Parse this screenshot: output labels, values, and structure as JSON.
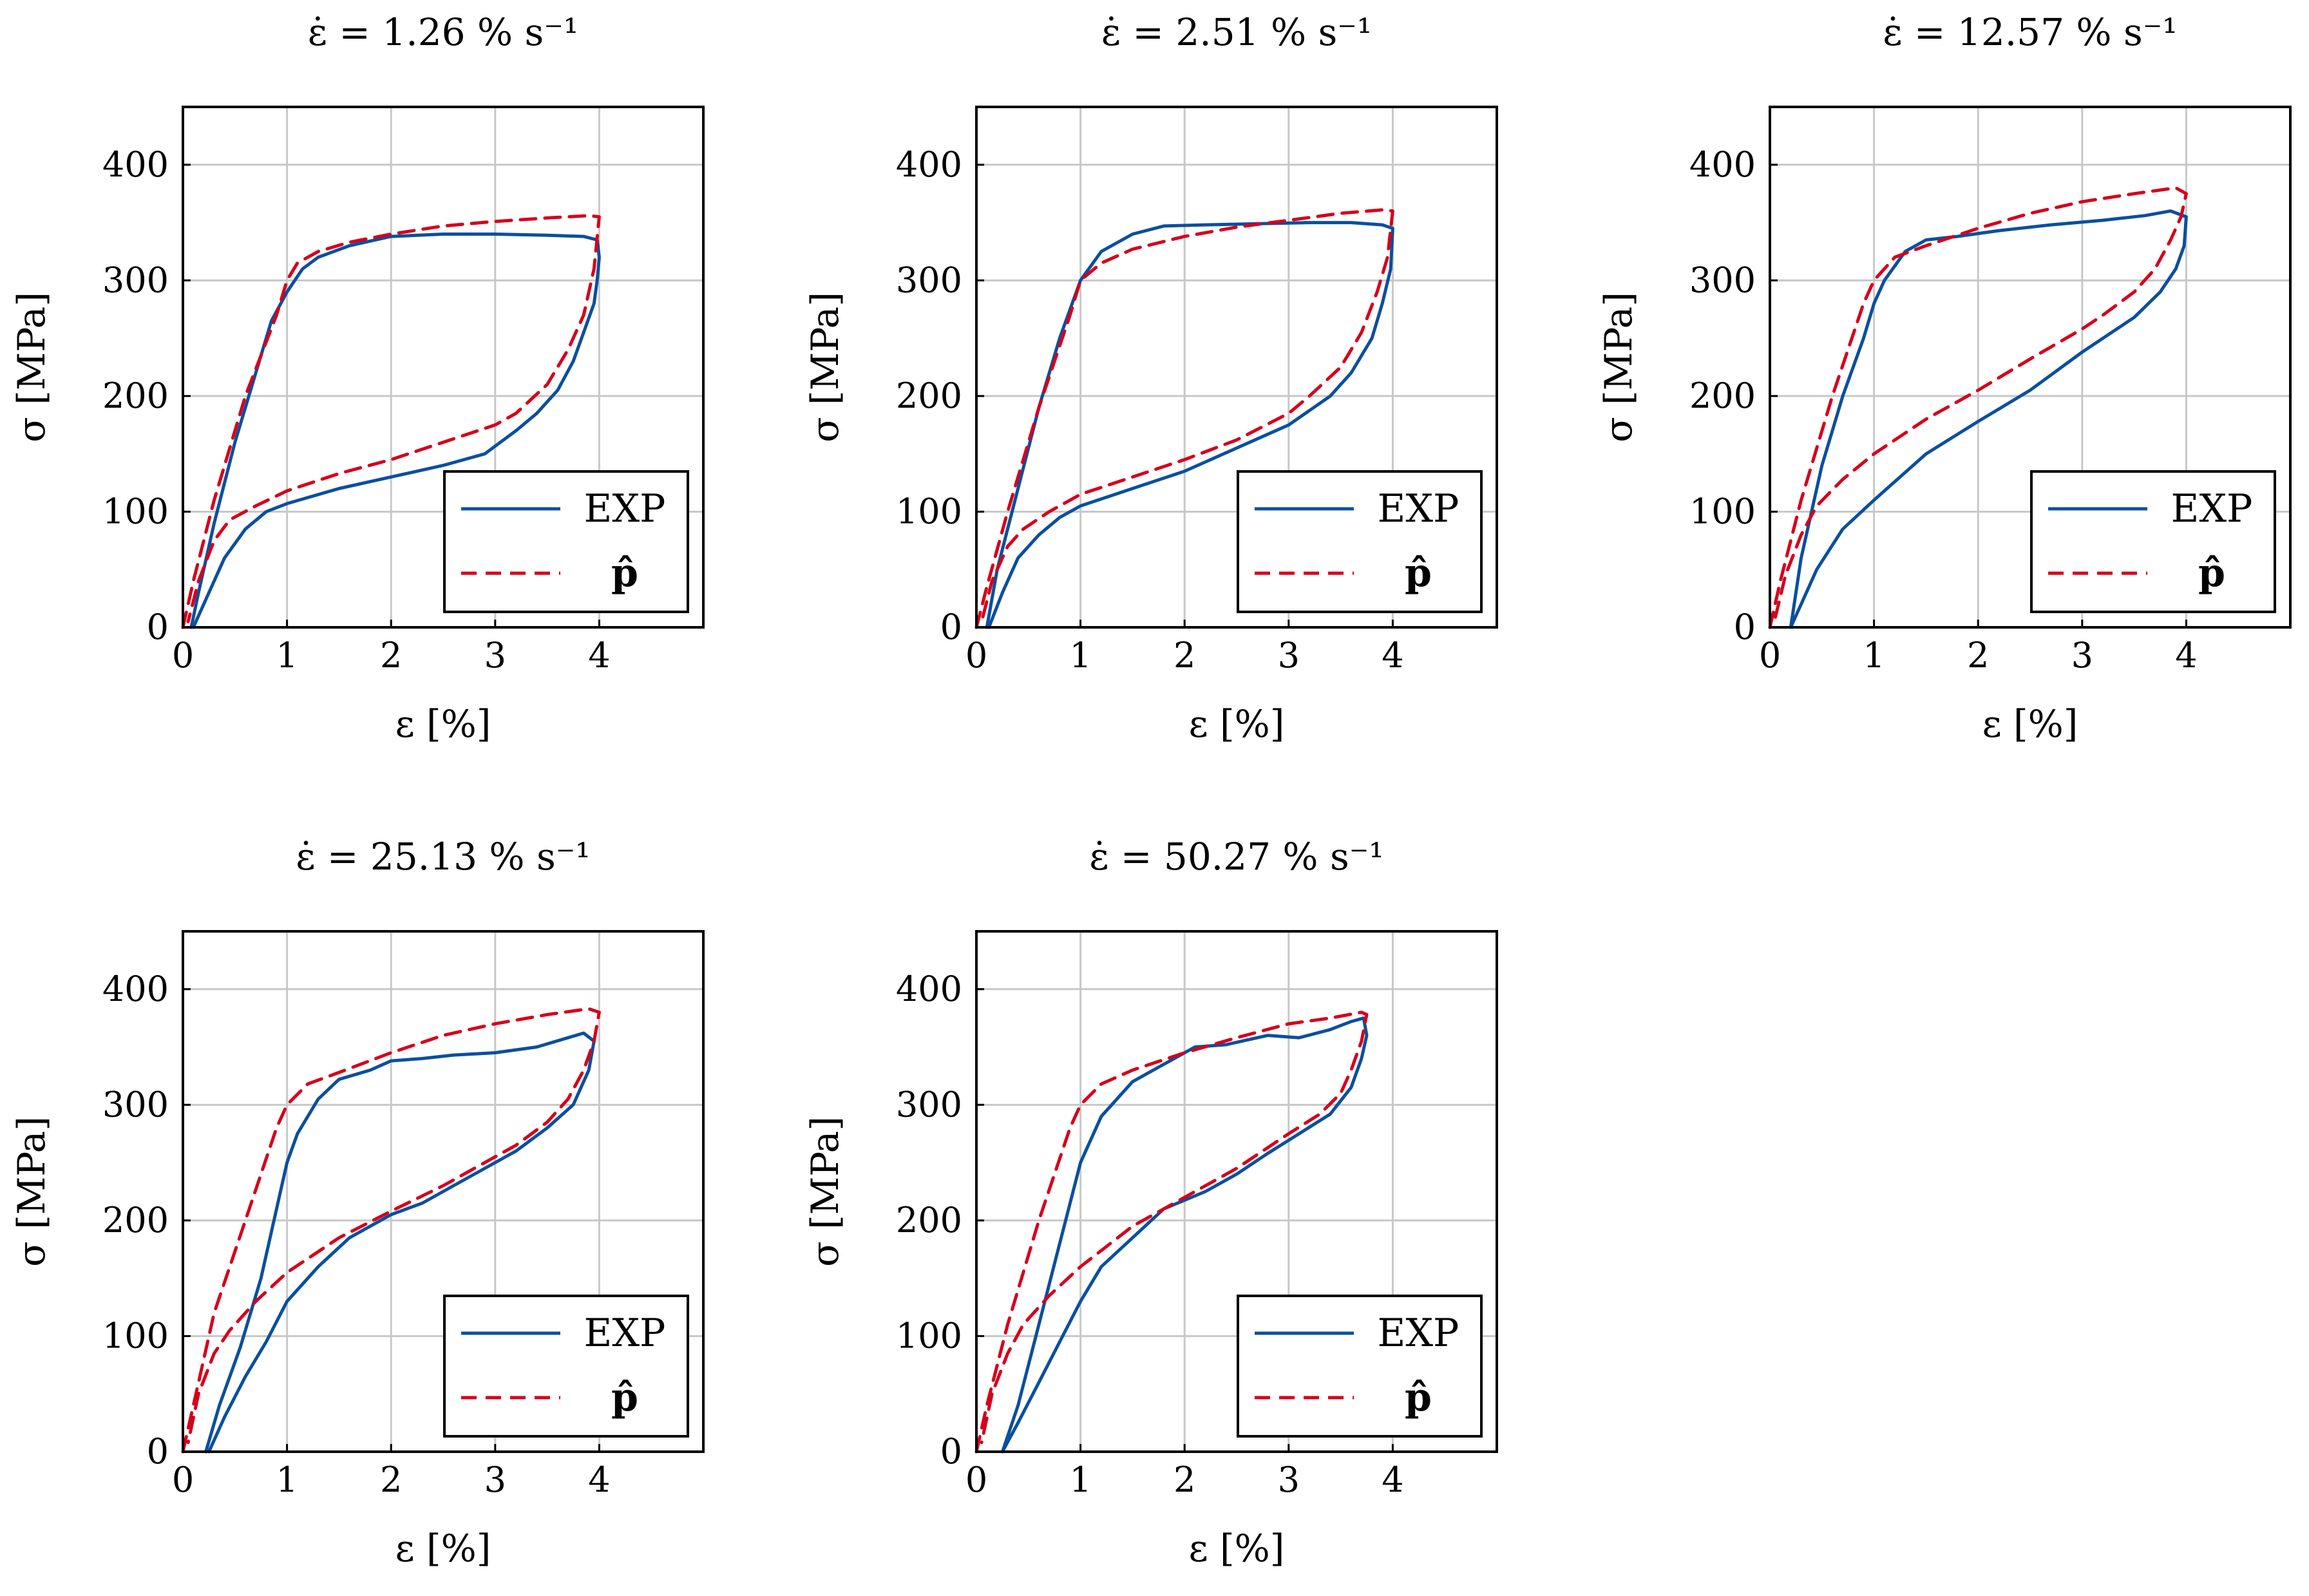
{
  "colors": {
    "exp": "#0b4f9e",
    "model": "#d6001c",
    "grid": "#c8c8c8"
  },
  "chart_data": [
    {
      "type": "line",
      "title": "ε̇ = 1.26 % s⁻¹",
      "xlabel": "ε [%]",
      "ylabel": "σ [MPa]",
      "xlim": [
        0,
        5
      ],
      "ylim": [
        0,
        450
      ],
      "xticks": [
        0,
        1,
        2,
        3,
        4
      ],
      "yticks": [
        0,
        100,
        200,
        300,
        400
      ],
      "grid": true,
      "legend_position": "bottom-right",
      "series": [
        {
          "name": "EXP",
          "style": "solid",
          "x": [
            0.08,
            0.15,
            0.3,
            0.5,
            0.7,
            0.85,
            1.0,
            1.15,
            1.3,
            1.6,
            2.0,
            2.5,
            3.0,
            3.5,
            3.85,
            3.98,
            4.0,
            3.98,
            3.95,
            3.85,
            3.75,
            3.6,
            3.4,
            3.2,
            2.9,
            2.5,
            2.0,
            1.5,
            1.0,
            0.8,
            0.6,
            0.4,
            0.25,
            0.1
          ],
          "y": [
            0,
            30,
            90,
            160,
            220,
            265,
            290,
            310,
            320,
            330,
            338,
            340,
            340,
            339,
            338,
            335,
            320,
            300,
            280,
            255,
            230,
            205,
            185,
            170,
            150,
            140,
            130,
            120,
            107,
            100,
            85,
            60,
            30,
            0
          ]
        },
        {
          "name": "p̂",
          "style": "dashed",
          "x": [
            0,
            0.1,
            0.3,
            0.6,
            0.9,
            1.0,
            1.1,
            1.3,
            1.6,
            2.0,
            2.5,
            3.0,
            3.5,
            3.9,
            4.0,
            3.95,
            3.85,
            3.7,
            3.5,
            3.2,
            3.0,
            2.5,
            2.0,
            1.5,
            1.0,
            0.7,
            0.45,
            0.3,
            0.15,
            0.05
          ],
          "y": [
            0,
            40,
            110,
            200,
            270,
            300,
            315,
            325,
            333,
            340,
            347,
            351,
            354,
            356,
            355,
            310,
            270,
            240,
            210,
            185,
            175,
            160,
            145,
            133,
            118,
            105,
            93,
            75,
            40,
            5
          ]
        }
      ]
    },
    {
      "type": "line",
      "title": "ε̇ = 2.51 % s⁻¹",
      "xlabel": "ε [%]",
      "ylabel": "σ [MPa]",
      "xlim": [
        0,
        5
      ],
      "ylim": [
        0,
        450
      ],
      "xticks": [
        0,
        1,
        2,
        3,
        4
      ],
      "yticks": [
        0,
        100,
        200,
        300,
        400
      ],
      "grid": true,
      "legend_position": "bottom-right",
      "series": [
        {
          "name": "EXP",
          "style": "solid",
          "x": [
            0.1,
            0.2,
            0.4,
            0.6,
            0.8,
            1.0,
            1.2,
            1.5,
            1.8,
            2.2,
            2.7,
            3.2,
            3.6,
            3.9,
            4.0,
            3.98,
            3.9,
            3.8,
            3.6,
            3.4,
            3.0,
            2.5,
            2.0,
            1.5,
            1.0,
            0.8,
            0.6,
            0.4,
            0.25,
            0.12
          ],
          "y": [
            0,
            50,
            120,
            190,
            250,
            300,
            325,
            340,
            347,
            348,
            349,
            350,
            350,
            348,
            345,
            310,
            280,
            250,
            220,
            200,
            175,
            155,
            135,
            120,
            105,
            95,
            80,
            60,
            30,
            0
          ]
        },
        {
          "name": "p̂",
          "style": "dashed",
          "x": [
            0,
            0.1,
            0.3,
            0.6,
            0.9,
            1.0,
            1.2,
            1.5,
            2.0,
            2.5,
            3.0,
            3.5,
            3.9,
            4.0,
            3.95,
            3.85,
            3.7,
            3.5,
            3.2,
            3.0,
            2.5,
            2.0,
            1.5,
            1.0,
            0.7,
            0.45,
            0.3,
            0.15,
            0.05
          ],
          "y": [
            0,
            35,
            100,
            190,
            270,
            300,
            315,
            327,
            338,
            346,
            352,
            358,
            361,
            360,
            320,
            290,
            255,
            225,
            200,
            185,
            162,
            145,
            130,
            115,
            100,
            85,
            70,
            40,
            5
          ]
        }
      ]
    },
    {
      "type": "line",
      "title": "ε̇ = 12.57 % s⁻¹",
      "xlabel": "ε [%]",
      "ylabel": "σ [MPa]",
      "xlim": [
        0,
        5
      ],
      "ylim": [
        0,
        450
      ],
      "xticks": [
        0,
        1,
        2,
        3,
        4
      ],
      "yticks": [
        0,
        100,
        200,
        300,
        400
      ],
      "grid": true,
      "legend_position": "bottom-right",
      "series": [
        {
          "name": "EXP",
          "style": "solid",
          "x": [
            0.2,
            0.3,
            0.5,
            0.7,
            0.9,
            1.0,
            1.1,
            1.3,
            1.5,
            1.8,
            2.2,
            2.7,
            3.2,
            3.6,
            3.85,
            4.0,
            3.98,
            3.9,
            3.75,
            3.5,
            3.0,
            2.5,
            2.0,
            1.5,
            1.0,
            0.7,
            0.45,
            0.3,
            0.2
          ],
          "y": [
            0,
            60,
            140,
            200,
            250,
            280,
            300,
            325,
            335,
            338,
            343,
            348,
            352,
            356,
            360,
            355,
            330,
            310,
            290,
            268,
            238,
            205,
            178,
            150,
            110,
            85,
            50,
            20,
            0
          ]
        },
        {
          "name": "p̂",
          "style": "dashed",
          "x": [
            0,
            0.1,
            0.3,
            0.6,
            0.9,
            1.0,
            1.2,
            1.5,
            2.0,
            2.5,
            3.0,
            3.5,
            3.9,
            4.0,
            3.95,
            3.85,
            3.7,
            3.5,
            3.2,
            3.0,
            2.5,
            2.0,
            1.5,
            1.0,
            0.7,
            0.45,
            0.3,
            0.15,
            0.05
          ],
          "y": [
            0,
            40,
            110,
            200,
            280,
            300,
            320,
            330,
            345,
            358,
            368,
            375,
            380,
            375,
            355,
            335,
            310,
            290,
            270,
            258,
            232,
            205,
            180,
            150,
            128,
            105,
            80,
            45,
            8
          ]
        }
      ]
    },
    {
      "type": "line",
      "title": "ε̇ = 25.13 % s⁻¹",
      "xlabel": "ε [%]",
      "ylabel": "σ [MPa]",
      "xlim": [
        0,
        5
      ],
      "ylim": [
        0,
        450
      ],
      "xticks": [
        0,
        1,
        2,
        3,
        4
      ],
      "yticks": [
        0,
        100,
        200,
        300,
        400
      ],
      "grid": true,
      "legend_position": "bottom-right",
      "series": [
        {
          "name": "EXP",
          "style": "solid",
          "x": [
            0.22,
            0.35,
            0.55,
            0.75,
            0.9,
            1.0,
            1.1,
            1.3,
            1.5,
            1.8,
            2.0,
            2.3,
            2.6,
            3.0,
            3.4,
            3.7,
            3.85,
            3.95,
            3.9,
            3.75,
            3.5,
            3.2,
            3.0,
            2.7,
            2.3,
            2.0,
            1.6,
            1.3,
            1.0,
            0.8,
            0.6,
            0.4,
            0.25
          ],
          "y": [
            0,
            40,
            90,
            150,
            210,
            250,
            275,
            305,
            322,
            330,
            338,
            340,
            343,
            345,
            350,
            358,
            362,
            355,
            330,
            300,
            280,
            260,
            250,
            235,
            215,
            205,
            185,
            160,
            130,
            95,
            65,
            30,
            0
          ]
        },
        {
          "name": "p̂",
          "style": "dashed",
          "x": [
            0,
            0.1,
            0.3,
            0.6,
            0.9,
            1.0,
            1.2,
            1.5,
            2.0,
            2.5,
            3.0,
            3.5,
            3.9,
            4.0,
            3.95,
            3.85,
            3.7,
            3.5,
            3.2,
            3.0,
            2.5,
            2.0,
            1.5,
            1.0,
            0.7,
            0.45,
            0.3,
            0.15,
            0.05
          ],
          "y": [
            0,
            40,
            120,
            200,
            280,
            300,
            318,
            328,
            345,
            360,
            370,
            378,
            383,
            380,
            355,
            330,
            305,
            285,
            265,
            255,
            230,
            208,
            185,
            155,
            130,
            105,
            85,
            50,
            8
          ]
        }
      ]
    },
    {
      "type": "line",
      "title": "ε̇ = 50.27 % s⁻¹",
      "xlabel": "ε [%]",
      "ylabel": "σ [MPa]",
      "xlim": [
        0,
        5
      ],
      "ylim": [
        0,
        450
      ],
      "xticks": [
        0,
        1,
        2,
        3,
        4
      ],
      "yticks": [
        0,
        100,
        200,
        300,
        400
      ],
      "grid": true,
      "legend_position": "bottom-right",
      "series": [
        {
          "name": "EXP",
          "style": "solid",
          "x": [
            0.25,
            0.4,
            0.6,
            0.8,
            1.0,
            1.2,
            1.5,
            1.8,
            2.1,
            2.4,
            2.8,
            3.1,
            3.4,
            3.6,
            3.72,
            3.75,
            3.7,
            3.6,
            3.4,
            3.1,
            2.8,
            2.5,
            2.2,
            1.8,
            1.5,
            1.2,
            1.0,
            0.8,
            0.6,
            0.4,
            0.25
          ],
          "y": [
            0,
            40,
            110,
            180,
            250,
            290,
            320,
            335,
            350,
            352,
            360,
            358,
            365,
            372,
            375,
            360,
            340,
            315,
            292,
            275,
            258,
            240,
            225,
            210,
            185,
            160,
            130,
            95,
            60,
            25,
            0
          ]
        },
        {
          "name": "p̂",
          "style": "dashed",
          "x": [
            0,
            0.1,
            0.3,
            0.6,
            0.9,
            1.0,
            1.2,
            1.5,
            2.0,
            2.5,
            3.0,
            3.4,
            3.7,
            3.75,
            3.7,
            3.6,
            3.5,
            3.3,
            3.0,
            2.5,
            2.0,
            1.5,
            1.0,
            0.7,
            0.45,
            0.3,
            0.15,
            0.05
          ],
          "y": [
            0,
            40,
            110,
            200,
            280,
            300,
            318,
            330,
            345,
            358,
            370,
            375,
            380,
            378,
            355,
            330,
            310,
            292,
            275,
            245,
            220,
            195,
            160,
            135,
            110,
            85,
            50,
            8
          ]
        }
      ]
    }
  ]
}
